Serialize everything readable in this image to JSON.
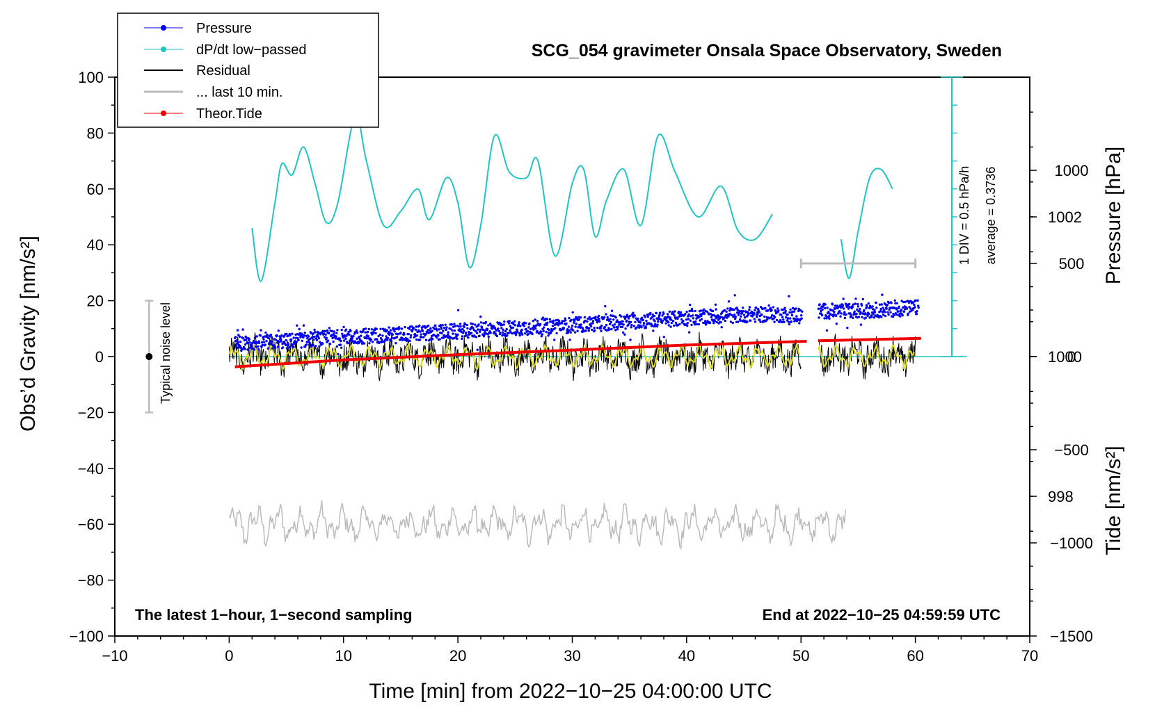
{
  "chart_data": {
    "type": "line",
    "title": "SCG_054 gravimeter Onsala Space Observatory, Sweden",
    "xlabel": "Time [min] from 2022−10−25 04:00:00 UTC",
    "ylabel_left": "Obs’d Gravity [nm/s²]",
    "ylabel_pressure": "Pressure [hPa]",
    "ylabel_tide": "Tide [nm/s²]",
    "xlim": [
      -10,
      70
    ],
    "ylim": [
      -100,
      100
    ],
    "pressure_lim": [
      996,
      1004
    ],
    "tide_lim": [
      -1500,
      1500
    ],
    "x_ticks": [
      "−10",
      "0",
      "10",
      "20",
      "30",
      "40",
      "50",
      "60",
      "70"
    ],
    "y_ticks": [
      "100",
      "80",
      "60",
      "40",
      "20",
      "0",
      "−20",
      "−40",
      "−60",
      "−80",
      "−100"
    ],
    "pressure_ticks": [
      "1002",
      "1000",
      "998"
    ],
    "tide_ticks": [
      "1000",
      "500",
      "0",
      "−500",
      "−1000",
      "−1500"
    ],
    "note_left": "The latest 1−hour, 1−second sampling",
    "note_right": "End at 2022−10−25 04:59:59 UTC",
    "div_note": "1 DIV = 0.5 hPa/h",
    "avg_note": "average = 0.3736",
    "noise_label": "Typical noise level",
    "legend": [
      {
        "label": "Pressure",
        "color": "#0000ee",
        "marker": true
      },
      {
        "label": "dP/dt low−passed",
        "color": "#22c4c4",
        "marker": true
      },
      {
        "label": "Residual",
        "color": "#000000",
        "marker": false
      },
      {
        "label": "... last 10 min.",
        "color": "#bbbbbb",
        "marker": false
      },
      {
        "label": "Theor.Tide",
        "color": "#ee0000",
        "marker": true
      }
    ],
    "series": [
      {
        "name": "Pressure",
        "unit": "hPa",
        "color": "#0000ee",
        "x": [
          0.5,
          5,
          10,
          15,
          20,
          25,
          30,
          35,
          40,
          45,
          50,
          51.5,
          55,
          60.3
        ],
        "y": [
          1000.18,
          1000.22,
          1000.28,
          1000.32,
          1000.36,
          1000.41,
          1000.45,
          1000.5,
          1000.55,
          1000.6,
          1000.6,
          1000.65,
          1000.65,
          1000.7
        ]
      },
      {
        "name": "dP/dt low−passed",
        "unit": "nm/s² equivalent",
        "color": "#22c4c4",
        "segments": [
          {
            "x": [
              2,
              2.8,
              4,
              4.6,
              5.5,
              6.5,
              7.5,
              8.5,
              9.5,
              11,
              12,
              13.5,
              15,
              16.5,
              17.5,
              19,
              20,
              21,
              22,
              23.2,
              24.5,
              26,
              27,
              28.5,
              30,
              31,
              32,
              33,
              34.5,
              36,
              37.5,
              39,
              41,
              43,
              44.5,
              46,
              47.5
            ],
            "y": [
              46,
              27,
              55,
              69,
              65,
              75,
              62,
              48,
              55,
              86,
              70,
              47,
              52,
              60,
              49,
              64,
              55,
              32,
              47,
              79,
              66,
              64,
              70,
              36,
              62,
              67,
              43,
              56,
              67,
              47,
              79,
              66,
              50,
              61,
              45,
              42,
              51
            ]
          },
          {
            "x": [
              53.5,
              54.2,
              55,
              56,
              57,
              58
            ],
            "y": [
              42,
              28,
              45,
              64,
              67,
              60
            ]
          }
        ]
      },
      {
        "name": "Residual",
        "unit": "nm/s²",
        "color": "#000000",
        "x_range": [
          0,
          60
        ],
        "gap": [
          50,
          51.5
        ],
        "approx_range": [
          -11,
          11
        ]
      },
      {
        "name": "Residual smoothed",
        "unit": "nm/s²",
        "color": "#dddd22",
        "x_range": [
          0,
          60
        ],
        "gap": [
          50,
          51.5
        ],
        "approx_range": [
          -4,
          4
        ]
      },
      {
        "name": "... last 10 min.",
        "unit": "nm/s²",
        "color": "#bbbbbb",
        "x_range": [
          0,
          54
        ],
        "center": -60,
        "approx_range": [
          -69,
          -52
        ]
      },
      {
        "name": "Theor.Tide",
        "unit": "nm/s²",
        "color": "#ee0000",
        "segments": [
          {
            "x": [
              0.5,
              10,
              20,
              30,
              40,
              50.5
            ],
            "y": [
              -55,
              -18,
              10,
              35,
              62,
              82
            ]
          },
          {
            "x": [
              51.5,
              55,
              60.5
            ],
            "y": [
              85,
              90,
              98
            ]
          }
        ]
      }
    ],
    "noise_bar": {
      "x": -7,
      "y_center": 0,
      "y_half": 20
    },
    "last10_bar": {
      "x_from": 50,
      "x_to": 60,
      "tide": 500
    },
    "pressure_reference_line": 1000
  }
}
